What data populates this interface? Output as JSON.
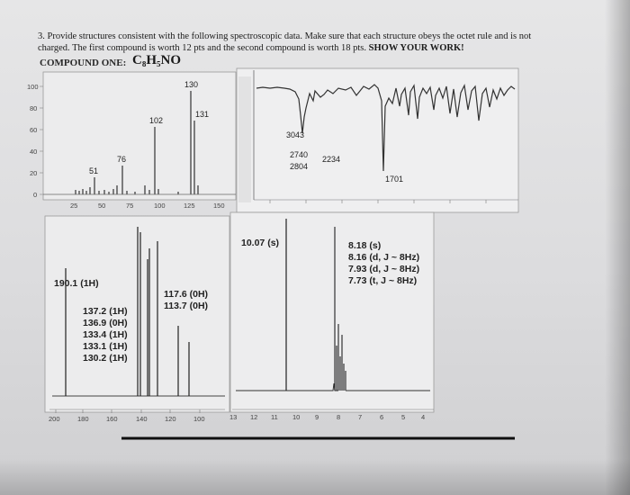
{
  "question": {
    "line1": "3. Provide structures consistent with the following spectroscopic data. Make sure that each structure obeys the octet rule and is not",
    "line2_regular": "charged. The first compound is worth 12 pts and the second compound is worth 18 pts.",
    "line2_bold": "SHOW YOUR WORK!",
    "compound_label": "COMPOUND ONE:",
    "formula": "C₈H₅NO"
  },
  "mass_spec": {
    "y_ticks": [
      "100",
      "80",
      "60",
      "40",
      "20",
      "0"
    ],
    "x_ticks": [
      "25",
      "50",
      "75",
      "100",
      "125",
      "150"
    ],
    "peak_labels": [
      "130",
      "131",
      "102",
      "76",
      "51"
    ]
  },
  "ir": {
    "labels": [
      "3043",
      "2740",
      "2804",
      "2234",
      "1701"
    ]
  },
  "c13": {
    "labels": [
      "190.1 (1H)",
      "137.2 (1H)",
      "136.9 (0H)",
      "133.4 (1H)",
      "133.1 (1H)",
      "130.2 (1H)",
      "117.6 (0H)",
      "113.7 (0H)"
    ],
    "x_ticks": [
      "200",
      "180",
      "160",
      "140",
      "120",
      "100"
    ]
  },
  "h1": {
    "labels": [
      "10.07 (s)",
      "8.18 (s)",
      "8.16 (d, J ~ 8Hz)",
      "7.93 (d, J ~ 8Hz)",
      "7.73 (t, J ~ 8Hz)"
    ],
    "x_ticks": [
      "13",
      "12",
      "11",
      "10",
      "9",
      "8",
      "7",
      "6",
      "5",
      "4"
    ]
  }
}
